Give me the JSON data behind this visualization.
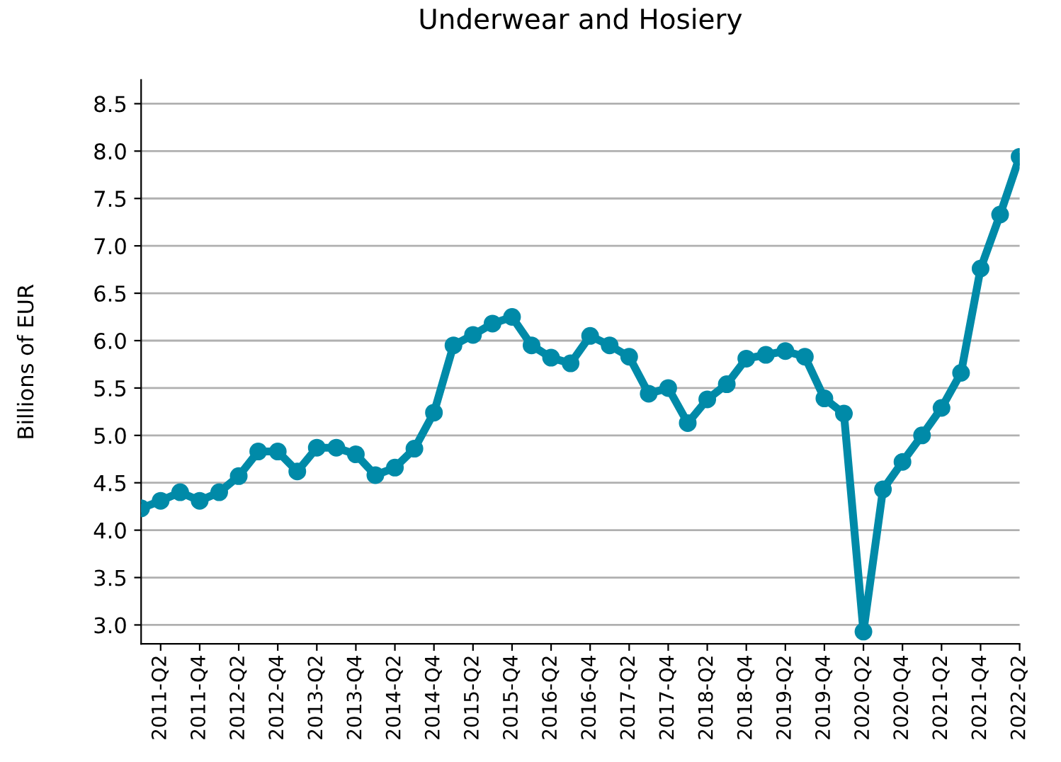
{
  "chart_data": {
    "type": "line",
    "title": "Underwear and Hosiery",
    "ylabel": "Billions of EUR",
    "categories": [
      null,
      "2011-Q2",
      null,
      "2011-Q4",
      null,
      "2012-Q2",
      null,
      "2012-Q4",
      null,
      "2013-Q2",
      null,
      "2013-Q4",
      null,
      "2014-Q2",
      null,
      "2014-Q4",
      null,
      "2015-Q2",
      null,
      "2015-Q4",
      null,
      "2016-Q2",
      null,
      "2016-Q4",
      null,
      "2017-Q2",
      null,
      "2017-Q4",
      null,
      "2018-Q2",
      null,
      "2018-Q4",
      null,
      "2019-Q2",
      null,
      "2019-Q4",
      null,
      "2020-Q2",
      null,
      "2020-Q4",
      null,
      "2021-Q2",
      null,
      "2021-Q4",
      null,
      "2022-Q2"
    ],
    "series": [
      {
        "color": "#008aa8",
        "values": [
          4.23,
          4.31,
          4.4,
          4.31,
          4.4,
          4.57,
          4.83,
          4.83,
          4.62,
          4.87,
          4.87,
          4.8,
          4.58,
          4.66,
          4.86,
          5.24,
          5.95,
          6.06,
          6.18,
          6.25,
          5.95,
          5.82,
          5.76,
          6.05,
          5.95,
          5.83,
          5.44,
          5.5,
          5.13,
          5.38,
          5.54,
          5.81,
          5.85,
          5.89,
          5.83,
          5.39,
          5.23,
          2.93,
          4.43,
          4.72,
          5.0,
          5.29,
          5.66,
          6.76,
          7.33,
          7.94
        ]
      }
    ],
    "ylim": [
      2.8,
      8.75
    ],
    "yticks": [
      {
        "value": 3,
        "label": "3.0"
      },
      3.5,
      {
        "value": 4,
        "label": "4.0"
      },
      4.5,
      {
        "value": 5,
        "label": "5.0"
      },
      5.5,
      {
        "value": 6,
        "label": "6.0"
      },
      6.5,
      {
        "value": 7,
        "label": "7.0"
      },
      7.5,
      {
        "value": 8,
        "label": "8.0"
      },
      8.5
    ],
    "grid": "y",
    "marker": "circle",
    "line_style": "solid"
  }
}
